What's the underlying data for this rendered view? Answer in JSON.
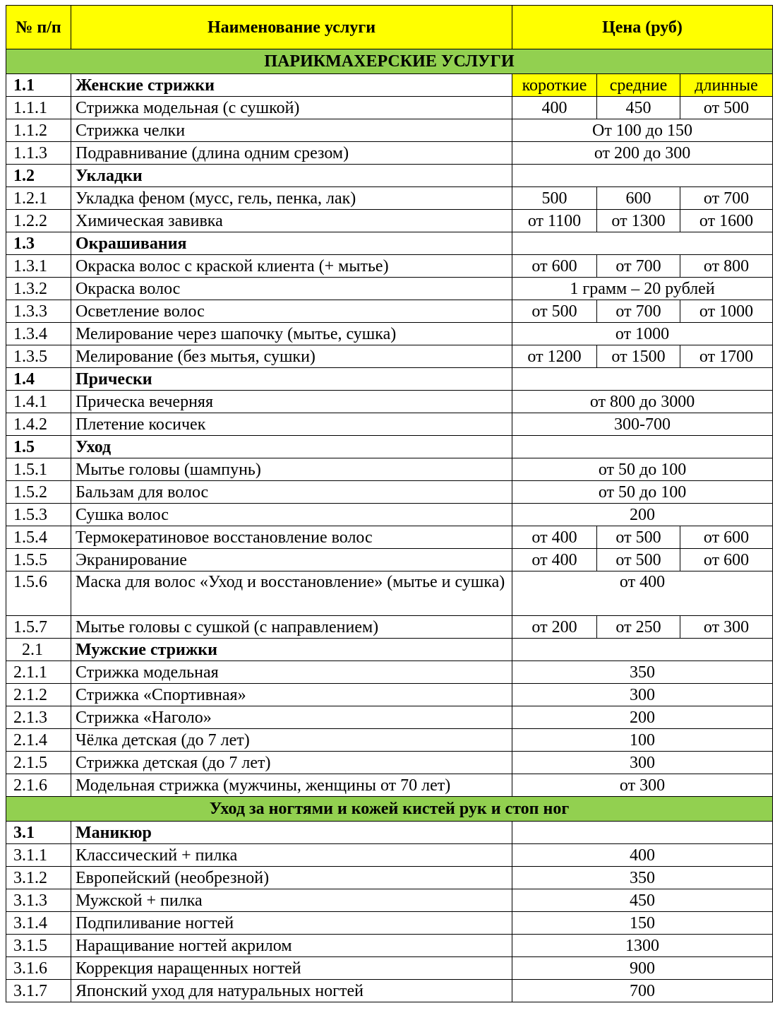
{
  "header": {
    "num": "№ п/п",
    "name": "Наименование услуги",
    "price": "Цена (руб)"
  },
  "colors": {
    "header_bg": "#FFFF00",
    "section_bg": "#92D050"
  },
  "rows": [
    {
      "type": "section",
      "label": "ПАРИКМАХЕРСКИЕ УСЛУГИ"
    },
    {
      "type": "group",
      "num": "1.1",
      "name": "Женские стрижки",
      "sub": [
        "короткие",
        "средние",
        "длинные"
      ]
    },
    {
      "type": "item",
      "num": "1.1.1",
      "name": "Стрижка модельная (с сушкой)",
      "prices": [
        "400",
        "450",
        "от 500"
      ]
    },
    {
      "type": "item",
      "num": "1.1.2",
      "name": "Стрижка челки",
      "price": "От 100 до 150"
    },
    {
      "type": "item",
      "num": "1.1.3",
      "name": "Подравнивание (длина одним срезом)",
      "price": "от 200 до 300"
    },
    {
      "type": "group",
      "num": "1.2",
      "name": "Укладки"
    },
    {
      "type": "item",
      "num": "1.2.1",
      "name": "Укладка феном (мусс, гель, пенка, лак)",
      "prices": [
        "500",
        "600",
        "от 700"
      ]
    },
    {
      "type": "item",
      "num": "1.2.2",
      "name": "Химическая завивка",
      "prices": [
        "от 1100",
        "от 1300",
        "от 1600"
      ]
    },
    {
      "type": "group",
      "num": "1.3",
      "name": "Окрашивания"
    },
    {
      "type": "item",
      "num": "1.3.1",
      "name": "Окраска волос с краской клиента (+ мытье)",
      "prices": [
        "от 600",
        "от 700",
        "от 800"
      ]
    },
    {
      "type": "item",
      "num": "1.3.2",
      "name": "Окраска волос",
      "price": "1 грамм – 20 рублей"
    },
    {
      "type": "item",
      "num": "1.3.3",
      "name": "Осветление волос",
      "prices": [
        "от 500",
        "от 700",
        "от 1000"
      ]
    },
    {
      "type": "item",
      "num": "1.3.4",
      "name": "Мелирование через шапочку (мытье, сушка)",
      "price": "от 1000"
    },
    {
      "type": "item",
      "num": "1.3.5",
      "name": "Мелирование (без мытья, сушки)",
      "prices": [
        "от 1200",
        "от 1500",
        "от 1700"
      ]
    },
    {
      "type": "group",
      "num": "1.4",
      "name": "Прически"
    },
    {
      "type": "item",
      "num": "1.4.1",
      "name": "Прическа вечерняя",
      "price": "от 800 до 3000"
    },
    {
      "type": "item",
      "num": "1.4.2",
      "name": "Плетение косичек",
      "price": "300-700"
    },
    {
      "type": "group",
      "num": "1.5",
      "name": "Уход"
    },
    {
      "type": "item",
      "num": "1.5.1",
      "name": "Мытье головы (шампунь)",
      "price": "от 50 до 100"
    },
    {
      "type": "item",
      "num": "1.5.2",
      "name": "Бальзам для волос",
      "price": "от 50 до 100"
    },
    {
      "type": "item",
      "num": "1.5.3",
      "name": "Сушка волос",
      "price": "200"
    },
    {
      "type": "item",
      "num": "1.5.4",
      "name": "Термокератиновое восстановление волос",
      "prices": [
        "от 400",
        "от 500",
        "от 600"
      ]
    },
    {
      "type": "item",
      "num": "1.5.5",
      "name": "Экранирование",
      "prices": [
        "от 400",
        "от 500",
        "от 600"
      ]
    },
    {
      "type": "item",
      "num": "1.5.6",
      "name": "Маска для волос «Уход и восстановление» (мытье и сушка)",
      "price": "от 400",
      "tall": true
    },
    {
      "type": "item",
      "num": "1.5.7",
      "name": "Мытье головы с сушкой (с направлением)",
      "prices": [
        "от 200",
        "от 250",
        "от 300"
      ]
    },
    {
      "type": "group2",
      "num": "2.1",
      "name": "Мужские стрижки"
    },
    {
      "type": "item",
      "num": "2.1.1",
      "name": "Стрижка модельная",
      "price": "350"
    },
    {
      "type": "item",
      "num": "2.1.2",
      "name": "Стрижка «Спортивная»",
      "price": "300"
    },
    {
      "type": "item",
      "num": "2.1.3",
      "name": "Стрижка «Наголо»",
      "price": "200"
    },
    {
      "type": "item",
      "num": "2.1.4",
      "name": "Чёлка детская (до 7 лет)",
      "price": "100"
    },
    {
      "type": "item",
      "num": "2.1.5",
      "name": "Стрижка детская (до 7 лет)",
      "price": "300"
    },
    {
      "type": "item",
      "num": "2.1.6",
      "name": "Модельная стрижка (мужчины, женщины от 70 лет)",
      "price": "от 300"
    },
    {
      "type": "section",
      "label": "Уход за ногтями и кожей кистей рук и стоп ног"
    },
    {
      "type": "group",
      "num": "3.1",
      "name": "Маникюр"
    },
    {
      "type": "item",
      "num": "3.1.1",
      "name": "Классический + пилка",
      "price": "400"
    },
    {
      "type": "item",
      "num": "3.1.2",
      "name": "Европейский (необрезной)",
      "price": "350"
    },
    {
      "type": "item",
      "num": "3.1.3",
      "name": "Мужской + пилка",
      "price": "450"
    },
    {
      "type": "item",
      "num": "3.1.4",
      "name": "Подпиливание ногтей",
      "price": "150"
    },
    {
      "type": "item",
      "num": "3.1.5",
      "name": "Наращивание ногтей акрилом",
      "price": "1300"
    },
    {
      "type": "item",
      "num": "3.1.6",
      "name": "Коррекция наращенных ногтей",
      "price": "900"
    },
    {
      "type": "item",
      "num": "3.1.7",
      "name": "Японский уход для натуральных ногтей",
      "price": "700"
    }
  ]
}
